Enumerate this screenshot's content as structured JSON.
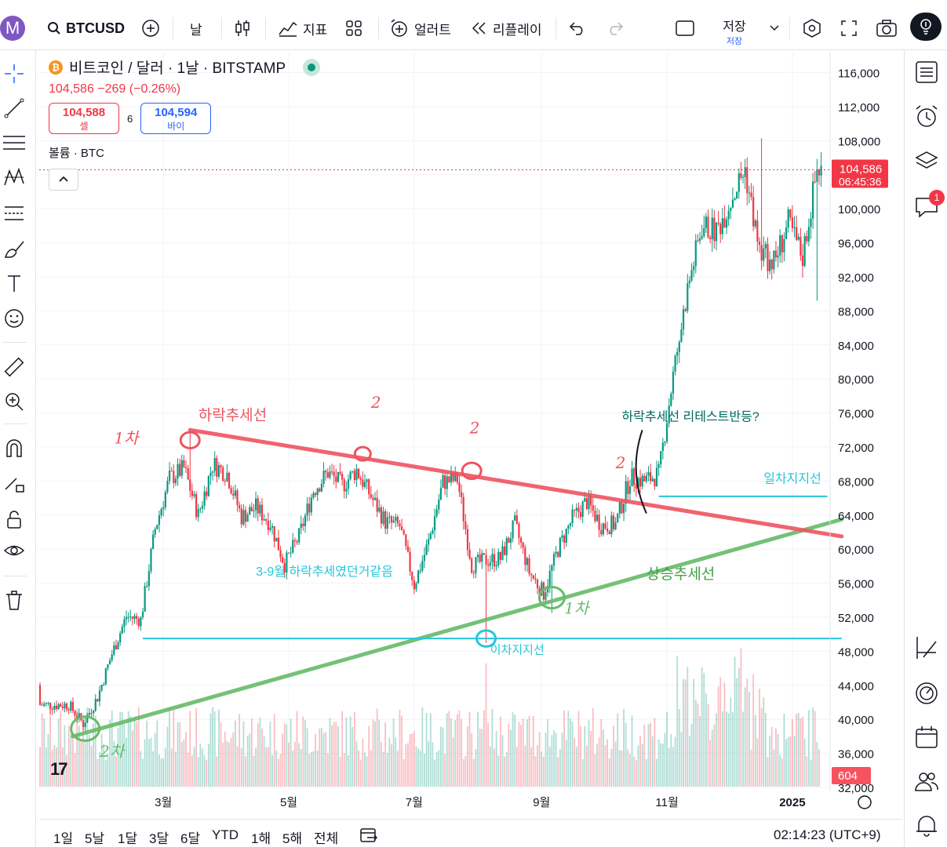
{
  "toolbar": {
    "avatar_letter": "M",
    "symbol": "BTCUSD",
    "interval": "날",
    "indicators_label": "지표",
    "alert_label": "얼러트",
    "replay_label": "리플레이",
    "save_label": "저장",
    "save_sublabel": "저장"
  },
  "legend": {
    "title": "비트코인 / 달러 · 1날 · BITSTAMP",
    "quote": "104,586 −269 (−0.26%)",
    "sell_price": "104,588",
    "sell_label": "셀",
    "spread": "6",
    "buy_price": "104,594",
    "buy_label": "바이",
    "volume_label": "볼륨 · BTC"
  },
  "price_axis": {
    "last_price": "104,586",
    "countdown": "06:45:36",
    "volume_last": "604",
    "last_color": "#f23645"
  },
  "right_toolbar": {
    "notification_count": "1"
  },
  "bottom": {
    "ranges": [
      "1일",
      "5날",
      "1달",
      "3달",
      "6달",
      "YTD",
      "1해",
      "5해",
      "전체"
    ],
    "clock": "02:14:23 (UTC+9)"
  },
  "colors": {
    "up": "#089981",
    "down": "#f23645",
    "resistance": "#ef5360",
    "support": "#66bb6a",
    "level": "#26c6da"
  },
  "chart_data": {
    "type": "candlestick",
    "symbol": "BTCUSD",
    "interval": "1D",
    "ylim": [
      31000,
      118000
    ],
    "y_ticks": [
      "116,000",
      "112,000",
      "108,000",
      "104,000",
      "100,000",
      "96,000",
      "92,000",
      "88,000",
      "84,000",
      "80,000",
      "76,000",
      "72,000",
      "68,000",
      "64,000",
      "60,000",
      "56,000",
      "52,000",
      "48,000",
      "44,000",
      "40,000",
      "36,000",
      "32,000"
    ],
    "x_ticks": [
      "3월",
      "5월",
      "7월",
      "9월",
      "11월",
      "2025"
    ],
    "weekly_close": [
      [
        "2024-01-15",
        41700
      ],
      [
        "2024-01-22",
        39500
      ],
      [
        "2024-01-29",
        42600
      ],
      [
        "2024-02-05",
        47700
      ],
      [
        "2024-02-12",
        52100
      ],
      [
        "2024-02-19",
        51700
      ],
      [
        "2024-02-26",
        62400
      ],
      [
        "2024-03-04",
        68300
      ],
      [
        "2024-03-11",
        69500
      ],
      [
        "2024-03-18",
        64000
      ],
      [
        "2024-03-25",
        70000
      ],
      [
        "2024-04-01",
        68900
      ],
      [
        "2024-04-08",
        63800
      ],
      [
        "2024-04-15",
        64900
      ],
      [
        "2024-04-22",
        63100
      ],
      [
        "2024-04-29",
        58200
      ],
      [
        "2024-05-06",
        61500
      ],
      [
        "2024-05-13",
        66900
      ],
      [
        "2024-05-20",
        69000
      ],
      [
        "2024-05-27",
        67500
      ],
      [
        "2024-06-03",
        69300
      ],
      [
        "2024-06-10",
        66200
      ],
      [
        "2024-06-17",
        63200
      ],
      [
        "2024-06-24",
        62700
      ],
      [
        "2024-07-01",
        55800
      ],
      [
        "2024-07-08",
        60800
      ],
      [
        "2024-07-15",
        67900
      ],
      [
        "2024-07-22",
        68200
      ],
      [
        "2024-07-29",
        58100
      ],
      [
        "2024-08-05",
        58700
      ],
      [
        "2024-08-12",
        58900
      ],
      [
        "2024-08-19",
        62900
      ],
      [
        "2024-08-26",
        57300
      ],
      [
        "2024-09-02",
        54800
      ],
      [
        "2024-09-09",
        60000
      ],
      [
        "2024-09-16",
        63600
      ],
      [
        "2024-09-23",
        65600
      ],
      [
        "2024-09-30",
        62800
      ],
      [
        "2024-10-07",
        62900
      ],
      [
        "2024-10-14",
        68400
      ],
      [
        "2024-10-21",
        68000
      ],
      [
        "2024-10-28",
        68800
      ],
      [
        "2024-11-04",
        80400
      ],
      [
        "2024-11-11",
        90600
      ],
      [
        "2024-11-18",
        98000
      ],
      [
        "2024-11-25",
        97300
      ],
      [
        "2024-12-02",
        101100
      ],
      [
        "2024-12-09",
        104600
      ],
      [
        "2024-12-16",
        94900
      ],
      [
        "2024-12-23",
        93700
      ],
      [
        "2024-12-30",
        98200
      ],
      [
        "2025-01-06",
        94400
      ],
      [
        "2025-01-13",
        104600
      ],
      [
        "2025-01-20",
        104586
      ]
    ],
    "lows": [
      [
        "2024-01-23",
        38500
      ],
      [
        "2024-08-05",
        49000
      ],
      [
        "2024-09-06",
        52500
      ],
      [
        "2025-01-13",
        89200
      ]
    ],
    "highs": [
      [
        "2024-03-14",
        73800
      ],
      [
        "2024-12-17",
        108300
      ],
      [
        "2025-01-20",
        109400
      ]
    ],
    "annotations": {
      "resistance_line": {
        "label": "하락추세선",
        "from": [
          "2024-03-14",
          74000
        ],
        "to": [
          "2025-01-25",
          61500
        ]
      },
      "support_line": {
        "label": "상승추세선",
        "from": [
          "2024-01-17",
          38000
        ],
        "to": [
          "2025-01-25",
          63500
        ]
      },
      "level_1": {
        "label": "일차지지선",
        "value": 66200
      },
      "level_2": {
        "label": "이차지지선",
        "value": 49500
      },
      "note_retest": "하락추세선 리테스트반등?",
      "note_range": "3-9월 하락추세였던거같음",
      "handwritten": [
        "1차",
        "2",
        "2",
        "2",
        "2",
        "1차",
        "2차",
        "2차"
      ]
    }
  }
}
